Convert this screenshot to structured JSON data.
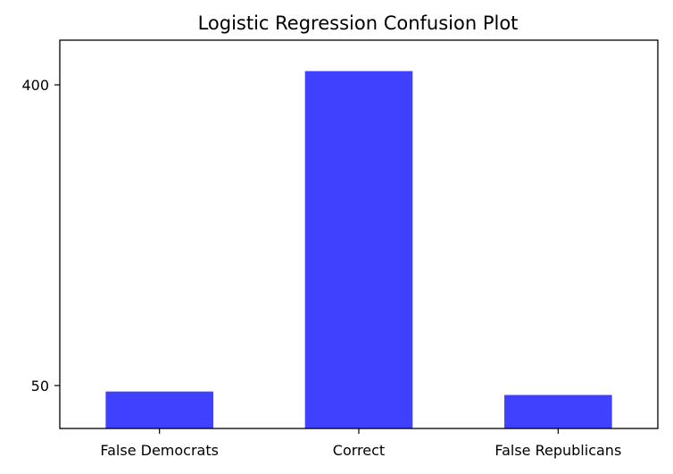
{
  "chart_data": {
    "type": "bar",
    "title": "Logistic Regression Confusion Plot",
    "xlabel": "",
    "ylabel": "",
    "categories": [
      "False Democrats",
      "Correct",
      "False Republicans"
    ],
    "values": [
      43,
      416,
      39
    ],
    "ylim": [
      0,
      452
    ],
    "yticks": [
      50,
      400
    ],
    "ytick_labels": [
      "50",
      "400"
    ],
    "bar_color": "#4040ff",
    "grid": false,
    "legend": "none"
  }
}
